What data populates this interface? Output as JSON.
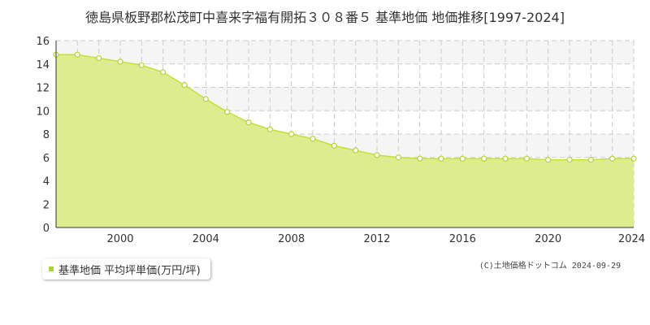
{
  "title": "徳島県板野郡松茂町中喜来字福有開拓３０８番５ 基準地価 地価推移[1997-2024]",
  "colors": {
    "fill": "#dcec8f",
    "line": "#c5df3c",
    "marker": "#b5d335",
    "legend": "#aad338",
    "grid": "#cccccc",
    "band": "#f5f5f5"
  },
  "legend": {
    "label": "基準地価 平均坪単価(万円/坪)"
  },
  "copyright": "(C)土地価格ドットコム 2024-09-29",
  "chart_data": {
    "type": "area",
    "ylim": [
      0,
      16
    ],
    "xlim": [
      1997,
      2024
    ],
    "yticks": [
      0,
      2,
      4,
      6,
      8,
      10,
      12,
      14,
      16
    ],
    "xticks": [
      2000,
      2004,
      2008,
      2012,
      2016,
      2020,
      2024
    ],
    "grid": true,
    "legend_position": "bottom-left",
    "series": [
      {
        "name": "基準地価 平均坪単価(万円/坪)",
        "x": [
          1997,
          1998,
          1999,
          2000,
          2001,
          2002,
          2003,
          2004,
          2005,
          2006,
          2007,
          2008,
          2009,
          2010,
          2011,
          2012,
          2013,
          2014,
          2015,
          2016,
          2017,
          2018,
          2019,
          2020,
          2021,
          2022,
          2023,
          2024
        ],
        "y": [
          14.8,
          14.8,
          14.5,
          14.2,
          13.9,
          13.3,
          12.2,
          11.0,
          9.9,
          9.0,
          8.4,
          8.0,
          7.6,
          7.0,
          6.6,
          6.2,
          6.0,
          5.9,
          5.9,
          5.9,
          5.9,
          5.9,
          5.9,
          5.8,
          5.8,
          5.8,
          5.9,
          5.9
        ]
      }
    ]
  }
}
